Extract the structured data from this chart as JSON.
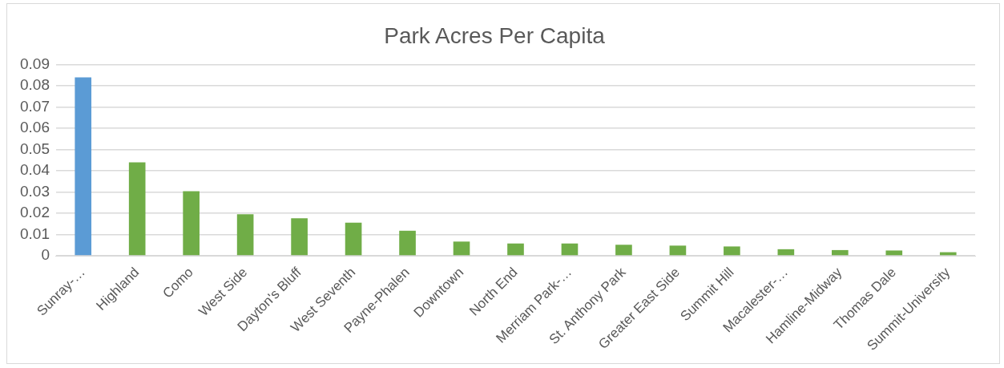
{
  "chart_data": {
    "type": "bar",
    "title": "Park Acres Per Capita",
    "categories": [
      "Sunray-…",
      "Highland",
      "Como",
      "West Side",
      "Dayton's Bluff",
      "West Seventh",
      "Payne-Phalen",
      "Downtown",
      "North End",
      "Merriam Park-…",
      "St. Anthony Park",
      "Greater East Side",
      "Summit Hill",
      "Macalester-…",
      "Hamline-Midway",
      "Thomas Dale",
      "Summit-University"
    ],
    "values": [
      0.084,
      0.044,
      0.0304,
      0.0196,
      0.0177,
      0.0156,
      0.0118,
      0.0067,
      0.0058,
      0.0058,
      0.0052,
      0.0048,
      0.0044,
      0.0031,
      0.0027,
      0.0025,
      0.0017
    ],
    "colors": [
      "#5b9bd5",
      "#70ad47",
      "#70ad47",
      "#70ad47",
      "#70ad47",
      "#70ad47",
      "#70ad47",
      "#70ad47",
      "#70ad47",
      "#70ad47",
      "#70ad47",
      "#70ad47",
      "#70ad47",
      "#70ad47",
      "#70ad47",
      "#70ad47",
      "#70ad47"
    ],
    "ylim": [
      0,
      0.09
    ],
    "yticks": [
      0,
      0.01,
      0.02,
      0.03,
      0.04,
      0.05,
      0.06,
      0.07,
      0.08,
      0.09
    ],
    "grid": "y",
    "legend": false
  }
}
